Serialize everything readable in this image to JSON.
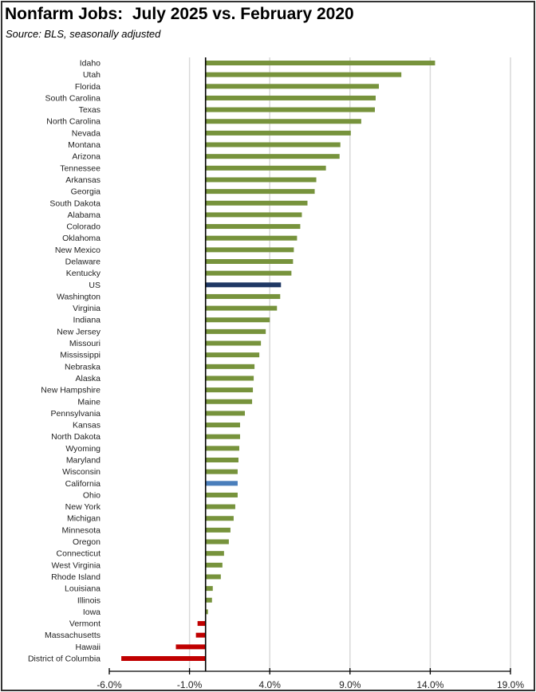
{
  "chart_data": {
    "type": "bar",
    "orientation": "horizontal",
    "title": "Nonfarm Jobs:  July 2025 vs. February 2020",
    "subtitle": "Source:  BLS, seasonally adjusted",
    "xlabel": "",
    "ylabel": "",
    "xlim": [
      -6,
      19
    ],
    "xticks": [
      -6,
      -1,
      4,
      9,
      14,
      19
    ],
    "xtick_labels": [
      "-6.0%",
      "-1.0%",
      "4.0%",
      "9.0%",
      "14.0%",
      "19.0%"
    ],
    "grid": "vertical",
    "categories": [
      "Idaho",
      "Utah",
      "Florida",
      "South Carolina",
      "Texas",
      "North Carolina",
      "Nevada",
      "Montana",
      "Arizona",
      "Tennessee",
      "Arkansas",
      "Georgia",
      "South Dakota",
      "Alabama",
      "Colorado",
      "Oklahoma",
      "New Mexico",
      "Delaware",
      "Kentucky",
      "US",
      "Washington",
      "Virginia",
      "Indiana",
      "New Jersey",
      "Missouri",
      "Mississippi",
      "Nebraska",
      "Alaska",
      "New Hampshire",
      "Maine",
      "Pennsylvania",
      "Kansas",
      "North Dakota",
      "Wyoming",
      "Maryland",
      "Wisconsin",
      "California",
      "Ohio",
      "New York",
      "Michigan",
      "Minnesota",
      "Oregon",
      "Connecticut",
      "West Virginia",
      "Rhode Island",
      "Louisiana",
      "Illinois",
      "Iowa",
      "Vermont",
      "Massachusetts",
      "Hawaii",
      "District of Columbia"
    ],
    "values": [
      14.3,
      12.2,
      10.8,
      10.6,
      10.55,
      9.7,
      9.05,
      8.4,
      8.35,
      7.5,
      6.9,
      6.8,
      6.35,
      6.0,
      5.9,
      5.7,
      5.5,
      5.45,
      5.35,
      4.7,
      4.65,
      4.45,
      4.0,
      3.75,
      3.45,
      3.35,
      3.05,
      3.0,
      2.95,
      2.9,
      2.45,
      2.15,
      2.15,
      2.1,
      2.05,
      2.0,
      2.0,
      2.0,
      1.85,
      1.75,
      1.55,
      1.45,
      1.15,
      1.05,
      0.95,
      0.45,
      0.4,
      0.15,
      -0.5,
      -0.6,
      -1.85,
      -5.25
    ],
    "colors": {
      "positive": "#77933c",
      "negative": "#c00000",
      "US": "#1f3864",
      "California": "#4a7ebb"
    }
  }
}
